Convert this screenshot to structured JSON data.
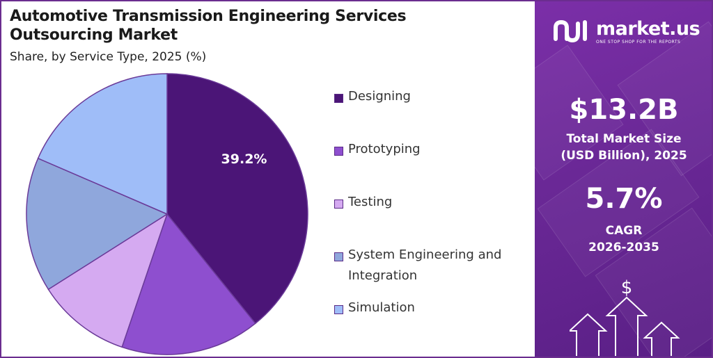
{
  "chart_data": {
    "type": "pie",
    "title": "Automotive Transmission Engineering Services Outsourcing Market",
    "subtitle": "Share, by Service Type, 2025 (%)",
    "slices": [
      {
        "name": "Designing",
        "value": 39.2,
        "color": "#4b1577",
        "label": "39.2%"
      },
      {
        "name": "Prototyping",
        "value": 16.0,
        "color": "#8e4fcf",
        "label": ""
      },
      {
        "name": "Testing",
        "value": 10.8,
        "color": "#d5aaf1",
        "label": ""
      },
      {
        "name": "System Engineering and Integration",
        "value": 15.5,
        "color": "#8fa7dc",
        "label": ""
      },
      {
        "name": "Simulation",
        "value": 18.5,
        "color": "#9fbdf8",
        "label": ""
      }
    ],
    "legend_position": "right"
  },
  "panel": {
    "brand": "market.us",
    "tagline": "ONE STOP SHOP FOR THE REPORTS",
    "market_size": "$13.2B",
    "market_size_label_1": "Total Market Size",
    "market_size_label_2": "(USD Billion), 2025",
    "cagr": "5.7%",
    "cagr_label_1": "CAGR",
    "cagr_label_2": "2026-2035",
    "currency_icon": "dollar-icon",
    "background_color": "#6a2896"
  }
}
